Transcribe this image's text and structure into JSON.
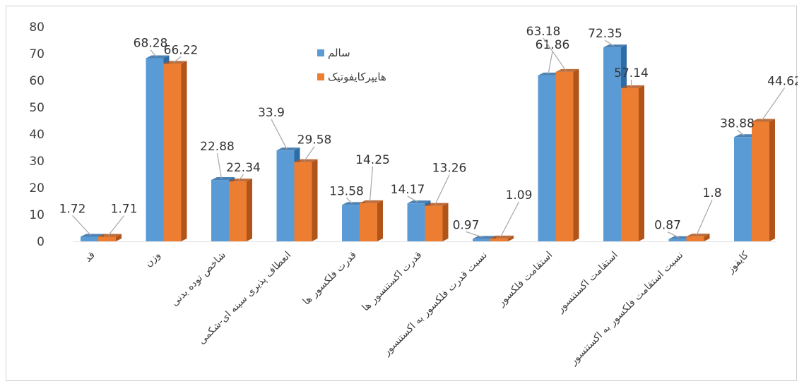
{
  "chart_data": {
    "type": "bar",
    "title": "",
    "xlabel": "",
    "ylabel": "",
    "ylim": [
      0,
      80
    ],
    "yticks": [
      0,
      10,
      20,
      30,
      40,
      50,
      60,
      70,
      80
    ],
    "grid": false,
    "legend_position": "top-center",
    "categories": [
      "قد",
      "وزن",
      "شاخص توده بدنی",
      "انعطاف پذیری سینه ای-شکمی",
      "قدرت فلکسور ها",
      "قدرت اکستنسور ها",
      "نسبت قدرت فلکسور به اکستنسور",
      "استقامت فلکسور",
      "استقامت اکستنسور",
      "نسبت استقامت فلکسور به اکستنسور",
      "کایفوز"
    ],
    "series": [
      {
        "name": "سالم",
        "color": "#5b9bd5",
        "side_color": "#2e6ca6",
        "values": [
          1.72,
          68.28,
          22.88,
          33.9,
          13.58,
          14.17,
          0.97,
          61.86,
          72.35,
          0.87,
          38.88
        ]
      },
      {
        "name": "هایپرکایفوتیک",
        "color": "#ed7d31",
        "side_color": "#b0541a",
        "values": [
          1.71,
          66.22,
          22.34,
          29.58,
          14.25,
          13.26,
          1.09,
          63.18,
          57.14,
          1.8,
          44.62
        ]
      }
    ]
  }
}
